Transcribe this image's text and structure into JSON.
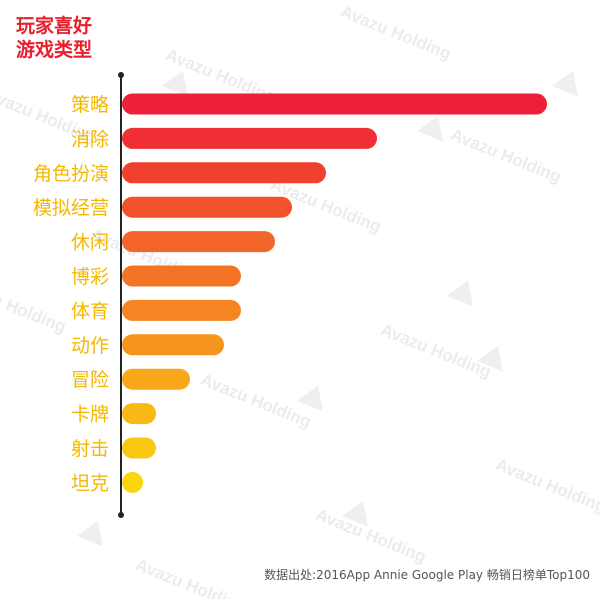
{
  "title_line1": "玩家喜好",
  "title_line2": "游戏类型",
  "watermark": "Avazu Holding",
  "source": "数据出处:2016App Annie Google Play 畅销日榜单Top100",
  "colors": {
    "title": "#e8202e",
    "label": "#f5b800",
    "axis": "#222222",
    "bars": [
      "#ee1f37",
      "#ef2f33",
      "#f0412f",
      "#f1532c",
      "#f26428",
      "#f37425",
      "#f58522",
      "#f6951e",
      "#f8a61a",
      "#f9b816",
      "#fac812",
      "#fbd60f"
    ]
  },
  "chart_data": {
    "type": "bar",
    "orientation": "horizontal",
    "title": "玩家喜好游戏类型",
    "categories": [
      "策略",
      "消除",
      "角色扮演",
      "模拟经营",
      "休闲",
      "博彩",
      "体育",
      "动作",
      "冒险",
      "卡牌",
      "射击",
      "坦克"
    ],
    "values": [
      25,
      15,
      12,
      10,
      9,
      7,
      7,
      6,
      4,
      2,
      2,
      1
    ],
    "xlim": [
      0,
      25
    ]
  }
}
